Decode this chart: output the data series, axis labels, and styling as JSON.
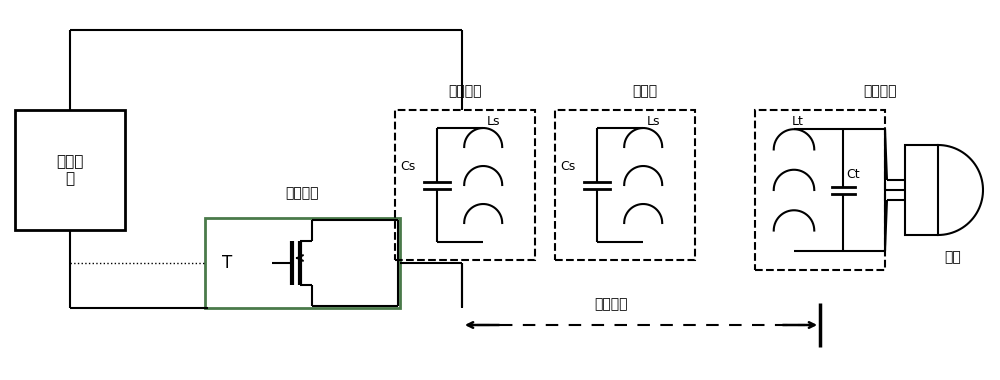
{
  "bg_color": "#ffffff",
  "switch_box_color": "#4a7a4a",
  "fig_width": 10.0,
  "fig_height": 3.8,
  "labels": {
    "dc_source": "直流电\n源",
    "switch_circuit": "开关电路",
    "transmit_circuit": "发射电路",
    "amplifier": "增强器",
    "receive_circuit": "接收电路",
    "bulb": "灯泡",
    "T": "T",
    "Cs1": "Cs",
    "Ls1": "Ls",
    "Cs2": "Cs",
    "Ls2": "Ls",
    "Lt": "Lt",
    "Ct": "Ct",
    "distance": "传输距离"
  }
}
